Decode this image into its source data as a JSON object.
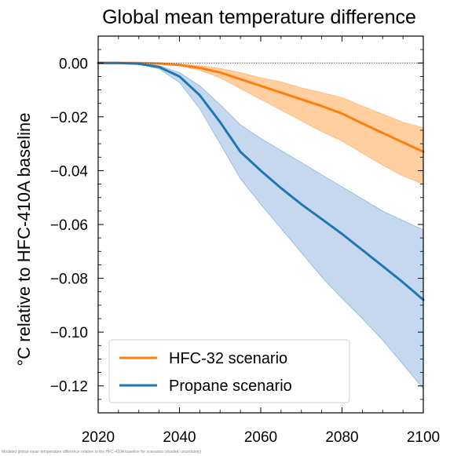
{
  "chart_data": {
    "type": "line",
    "title": "Global mean temperature difference",
    "xlabel": "",
    "ylabel": "°C relative to HFC-410A baseline",
    "xlim": [
      2020,
      2100
    ],
    "ylim": [
      -0.13,
      0.01
    ],
    "x_ticks": [
      2020,
      2040,
      2060,
      2080,
      2100
    ],
    "x_tick_labels": [
      "2020",
      "2040",
      "2060",
      "2080",
      "2100"
    ],
    "y_ticks": [
      0.0,
      -0.02,
      -0.04,
      -0.06,
      -0.08,
      -0.1,
      -0.12
    ],
    "y_tick_labels": [
      "0.00",
      "−0.02",
      "−0.04",
      "−0.06",
      "−0.08",
      "−0.10",
      "−0.12"
    ],
    "reference_line": {
      "y": 0.0,
      "style": "dotted"
    },
    "grid": false,
    "legend": "lower-left",
    "series": [
      {
        "name": "HFC-32 scenario",
        "color": "#ff7f0e",
        "band_color": "#ffbb78",
        "x": [
          2020,
          2025,
          2030,
          2035,
          2040,
          2045,
          2050,
          2055,
          2060,
          2065,
          2070,
          2075,
          2080,
          2085,
          2090,
          2095,
          2100
        ],
        "y": [
          0,
          0,
          0,
          -0.0002,
          -0.0007,
          -0.0018,
          -0.0035,
          -0.006,
          -0.0085,
          -0.011,
          -0.0135,
          -0.016,
          -0.0188,
          -0.0225,
          -0.026,
          -0.0295,
          -0.033
        ],
        "lower": [
          0,
          0,
          0,
          -0.0003,
          -0.001,
          -0.0027,
          -0.0055,
          -0.0095,
          -0.0135,
          -0.0175,
          -0.0215,
          -0.0255,
          -0.029,
          -0.0335,
          -0.038,
          -0.042,
          -0.045
        ],
        "upper": [
          0,
          0,
          0,
          -0.0001,
          -0.0004,
          -0.001,
          -0.002,
          -0.0035,
          -0.0055,
          -0.007,
          -0.0092,
          -0.011,
          -0.0128,
          -0.016,
          -0.019,
          -0.022,
          -0.024
        ]
      },
      {
        "name": "Propane scenario",
        "color": "#1f77b4",
        "band_color": "#aec7e8",
        "x": [
          2020,
          2025,
          2030,
          2035,
          2040,
          2045,
          2050,
          2055,
          2060,
          2065,
          2070,
          2075,
          2080,
          2085,
          2090,
          2095,
          2100
        ],
        "y": [
          0,
          0,
          -0.0003,
          -0.0015,
          -0.005,
          -0.012,
          -0.022,
          -0.033,
          -0.04,
          -0.0465,
          -0.0525,
          -0.058,
          -0.0635,
          -0.0695,
          -0.0755,
          -0.0815,
          -0.088
        ],
        "lower": [
          0,
          0,
          -0.0004,
          -0.0022,
          -0.0072,
          -0.017,
          -0.03,
          -0.043,
          -0.0525,
          -0.0615,
          -0.0705,
          -0.0795,
          -0.0875,
          -0.095,
          -0.103,
          -0.112,
          -0.121
        ],
        "upper": [
          0,
          0,
          -0.0002,
          -0.001,
          -0.0035,
          -0.0085,
          -0.0155,
          -0.023,
          -0.028,
          -0.0325,
          -0.037,
          -0.0415,
          -0.046,
          -0.0505,
          -0.055,
          -0.0585,
          -0.062
        ]
      }
    ]
  },
  "footnote": "Modeled global-mean temperature difference relative to the HFC-410A baseline for scenarios (shaded: uncertainty)"
}
